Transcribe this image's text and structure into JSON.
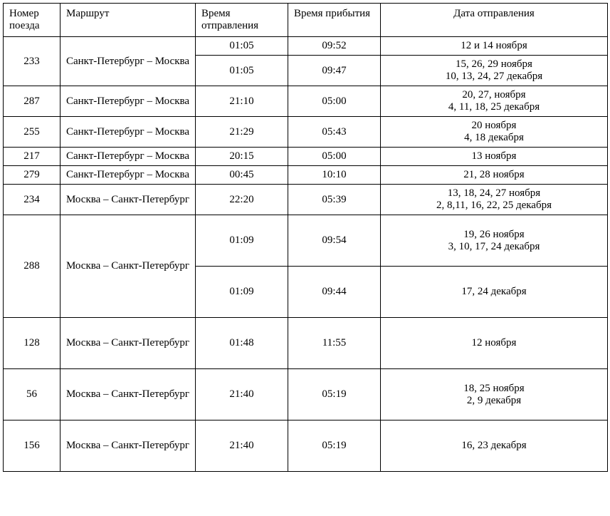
{
  "headers": {
    "train_number": "Номер поезда",
    "route": "Маршрут",
    "departure_time": "Время отправления",
    "arrival_time": "Время прибытия",
    "departure_date": "Дата отправления"
  },
  "rows": [
    {
      "number": "233",
      "route": "Санкт-Петербург – Москва",
      "schedules": [
        {
          "dep": "01:05",
          "arr": "09:52",
          "date": "12 и 14 ноября"
        },
        {
          "dep": "01:05",
          "arr": "09:47",
          "date": "15, 26, 29 ноября\n10, 13, 24, 27 декабря"
        }
      ]
    },
    {
      "number": "287",
      "route": "Санкт-Петербург – Москва",
      "schedules": [
        {
          "dep": "21:10",
          "arr": "05:00",
          "date": "20, 27, ноября\n4, 11, 18, 25 декабря"
        }
      ]
    },
    {
      "number": "255",
      "route": "Санкт-Петербург – Москва",
      "schedules": [
        {
          "dep": "21:29",
          "arr": "05:43",
          "date": "20 ноября\n4, 18 декабря"
        }
      ]
    },
    {
      "number": "217",
      "route": "Санкт-Петербург – Москва",
      "schedules": [
        {
          "dep": "20:15",
          "arr": "05:00",
          "date": "13 ноября"
        }
      ]
    },
    {
      "number": "279",
      "route": "Санкт-Петербург – Москва",
      "schedules": [
        {
          "dep": "00:45",
          "arr": "10:10",
          "date": "21, 28 ноября"
        }
      ]
    },
    {
      "number": "234",
      "route": "Москва – Санкт-Петербург",
      "schedules": [
        {
          "dep": "22:20",
          "arr": "05:39",
          "date": "13, 18, 24, 27 ноября\n2, 8,11, 16, 22, 25 декабря"
        }
      ]
    },
    {
      "number": "288",
      "route": "Москва – Санкт-Петербург",
      "schedules": [
        {
          "dep": "01:09",
          "arr": "09:54",
          "date": "19, 26 ноября\n3, 10, 17, 24 декабря"
        },
        {
          "dep": "01:09",
          "arr": "09:44",
          "date": "17, 24 декабря"
        }
      ]
    },
    {
      "number": "128",
      "route": "Москва – Санкт-Петербург",
      "schedules": [
        {
          "dep": "01:48",
          "arr": "11:55",
          "date": "12 ноября"
        }
      ]
    },
    {
      "number": "56",
      "route": "Москва – Санкт-Петербург",
      "schedules": [
        {
          "dep": "21:40",
          "arr": "05:19",
          "date": "18, 25 ноября\n2, 9 декабря"
        }
      ]
    },
    {
      "number": "156",
      "route": "Москва – Санкт-Петербург",
      "schedules": [
        {
          "dep": "21:40",
          "arr": "05:19",
          "date": "16, 23 декабря"
        }
      ]
    }
  ]
}
